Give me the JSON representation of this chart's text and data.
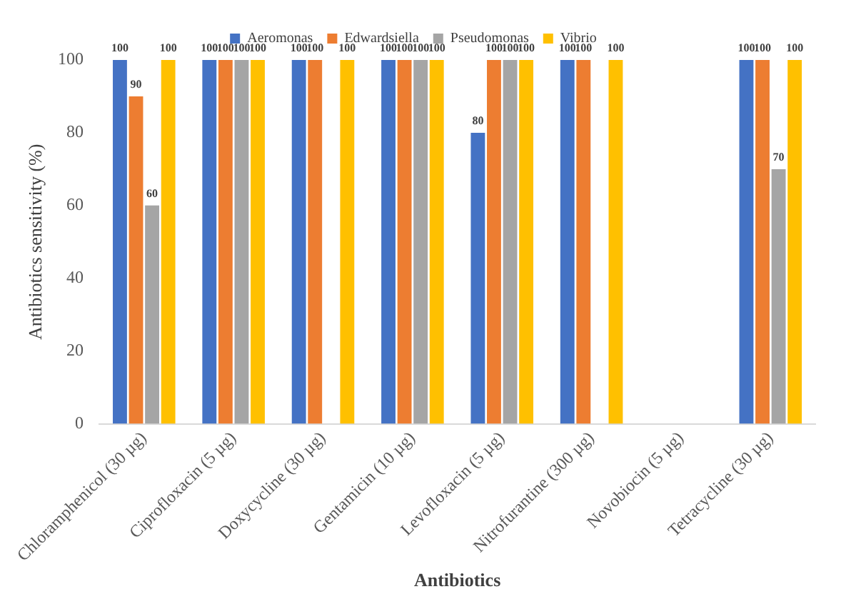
{
  "chart_data": {
    "type": "bar",
    "xlabel": "Antibiotics",
    "ylabel": "Antibiotics sensitivity (%)",
    "categories": [
      "Chloramphenicol (30 µg)",
      "Ciprofloxacin (5 µg)",
      "Doxycycline (30 µg)",
      "Gentamicin (10 µg)",
      "Levofloxacin (5 µg)",
      "Nitrofurantine (300 µg)",
      "Novobiocin (5 µg)",
      "Tetracycline (30 µg)"
    ],
    "series": [
      {
        "name": "Aeromonas",
        "color": "#4472c4",
        "values": [
          100,
          100,
          100,
          100,
          80,
          100,
          null,
          100
        ]
      },
      {
        "name": "Edwardsiella",
        "color": "#ed7d31",
        "values": [
          90,
          100,
          100,
          100,
          100,
          100,
          null,
          100
        ]
      },
      {
        "name": "Pseudomonas",
        "color": "#a5a5a5",
        "values": [
          60,
          100,
          null,
          100,
          100,
          null,
          null,
          70
        ]
      },
      {
        "name": "Vibrio",
        "color": "#ffc000",
        "values": [
          100,
          100,
          100,
          100,
          100,
          100,
          null,
          100
        ]
      }
    ],
    "ylim": [
      0,
      100
    ],
    "yticks": [
      0,
      20,
      40,
      60,
      80,
      100
    ],
    "grid": false,
    "legend": "top",
    "data_labels": true
  }
}
